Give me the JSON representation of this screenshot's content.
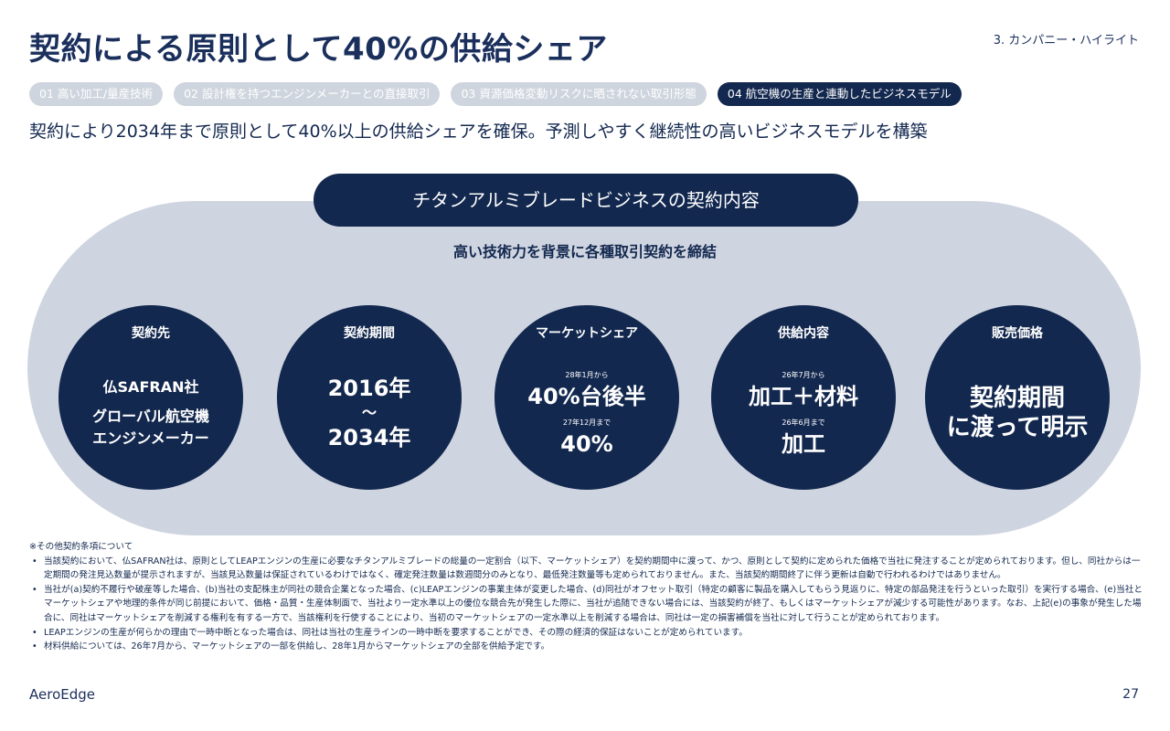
{
  "header": {
    "title": "契約による原則として40%の供給シェア",
    "section": "3. カンパニー・ハイライト"
  },
  "tabs": [
    {
      "label": "01 高い加工/量産技術",
      "active": false
    },
    {
      "label": "02 設計権を持つエンジンメーカーとの直接取引",
      "active": false
    },
    {
      "label": "03 資源価格変動リスクに晒されない取引形態",
      "active": false
    },
    {
      "label": "04 航空機の生産と連動したビジネスモデル",
      "active": true
    }
  ],
  "subtitle": "契約により2034年まで原則として40%以上の供給シェアを確保。予測しやすく継続性の高いビジネスモデルを構築",
  "band": {
    "title": "チタンアルミブレードビジネスの契約内容",
    "sub": "高い技術力を背景に各種取引契約を締結"
  },
  "circles": {
    "partner": {
      "heading": "契約先",
      "line1": "仏SAFRAN社",
      "line2": "グローバル航空機",
      "line3": "エンジンメーカー"
    },
    "period": {
      "heading": "契約期間",
      "line1": "2016年",
      "line2": "～",
      "line3": "2034年"
    },
    "share": {
      "heading": "マーケットシェア",
      "note1": "28年1月から",
      "value1": "40%台後半",
      "note2": "27年12月まで",
      "value2": "40%"
    },
    "supply": {
      "heading": "供給内容",
      "note1": "26年7月から",
      "value1": "加工＋材料",
      "note2": "26年6月まで",
      "value2": "加工"
    },
    "price": {
      "heading": "販売価格",
      "line1": "契約期間",
      "line2": "に渡って明示"
    }
  },
  "notes": {
    "heading": "※その他契約条項について",
    "items": [
      "当該契約において、仏SAFRAN社は、原則としてLEAPエンジンの生産に必要なチタンアルミブレードの総量の一定割合（以下、マーケットシェア）を契約期間中に渡って、かつ、原則として契約に定められた価格で当社に発注することが定められております。但し、同社からは一定期間の発注見込数量が提示されますが、当該見込数量は保証されているわけではなく、確定発注数量は数週間分のみとなり、最低発注数量等も定められておりません。また、当該契約期間終了に伴う更新は自動で行われるわけではありません。",
      "当社が(a)契約不履行や破産等した場合、(b)当社の支配株主が同社の競合企業となった場合、(c)LEAPエンジンの事業主体が変更した場合、(d)同社がオフセット取引（特定の顧客に製品を購入してもらう見返りに、特定の部品発注を行うといった取引）を実行する場合、(e)当社とマーケットシェアや地理的条件が同じ前提において、価格・品質・生産体制面で、当社より一定水準以上の優位な競合先が発生した際に、当社が追随できない場合には、当該契約が終了、もしくはマーケットシェアが減少する可能性があります。なお、上記(e)の事象が発生した場合に、同社はマーケットシェアを削減する権利を有する一方で、当該権利を行使することにより、当初のマーケットシェアの一定水準以上を削減する場合は、同社は一定の損害補償を当社に対して行うことが定められております。",
      "LEAPエンジンの生産が何らかの理由で一時中断となった場合は、同社は当社の生産ラインの一時中断を要求することができ、その際の経済的保証はないことが定められています。",
      "材料供給については、26年7月から、マーケットシェアの一部を供給し、28年1月からマーケットシェアの全部を供給予定です。"
    ]
  },
  "footer": {
    "brand": "AeroEdge",
    "page": "27"
  }
}
